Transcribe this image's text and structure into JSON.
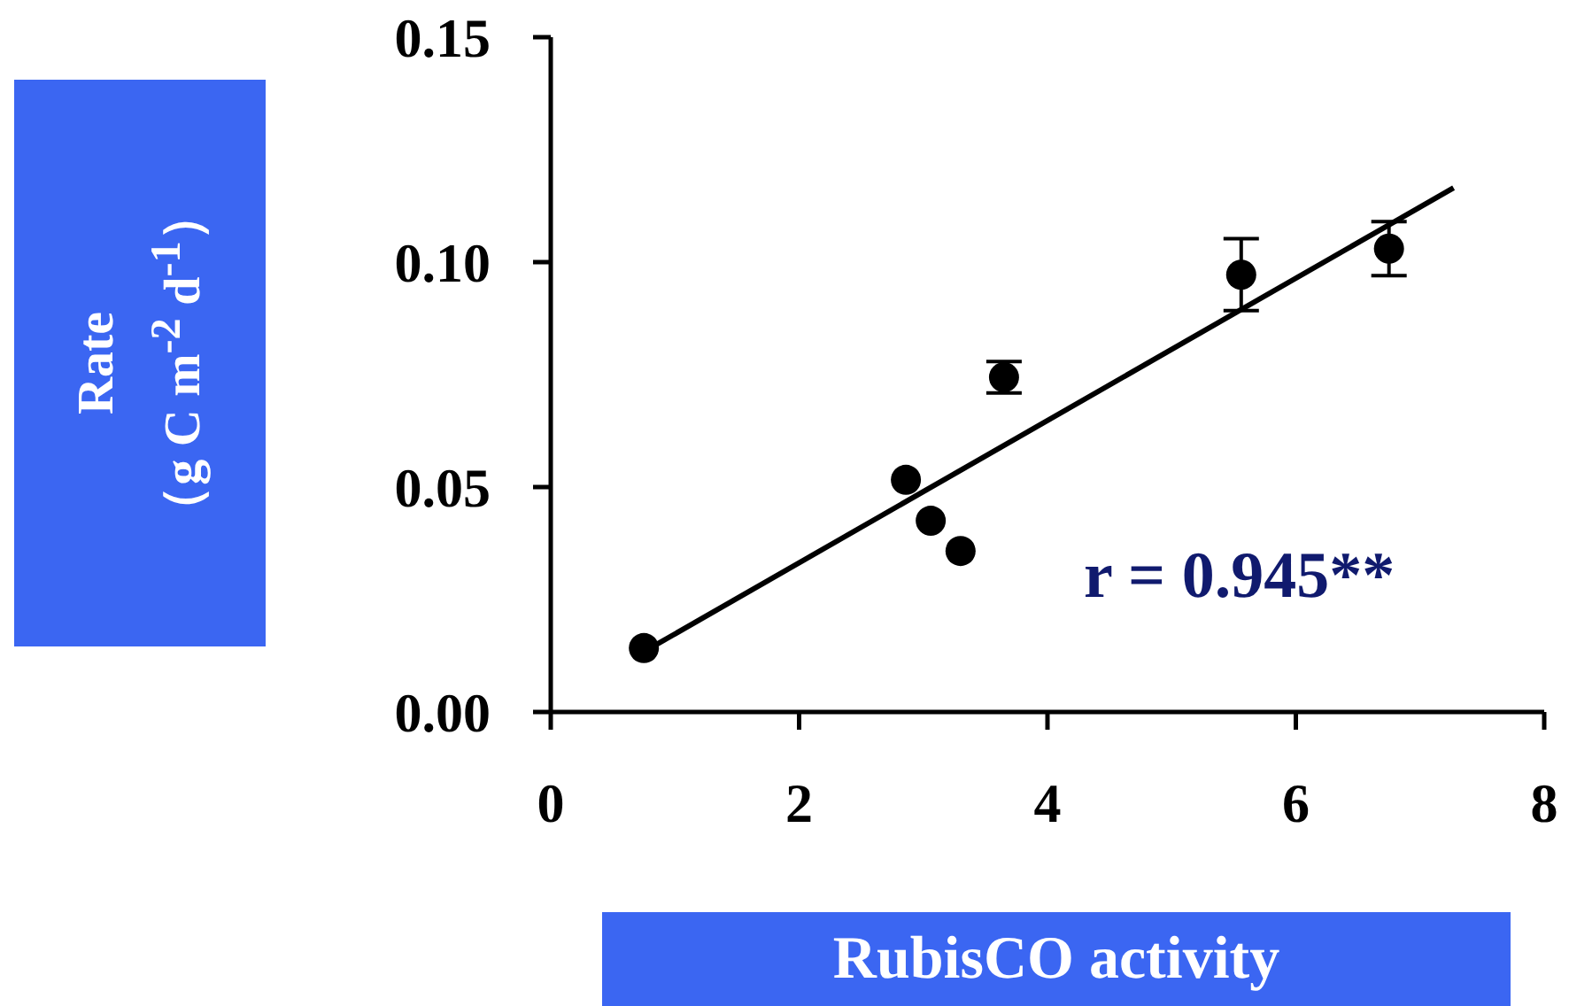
{
  "chart_data": {
    "type": "scatter",
    "xlabel": "RubisCO activity",
    "ylabel": "Rate\n（g C m$^{-2}$ d$^{-1}$）",
    "annotations": [
      "r = 0.945**"
    ],
    "xlim": [
      0,
      8
    ],
    "xticks": [
      0,
      2,
      4,
      6,
      8
    ],
    "ylim": [
      0,
      0.15
    ],
    "yticks": [
      {
        "value": 0,
        "label": "0.00"
      },
      {
        "value": 0.05,
        "label": "0.05"
      },
      {
        "value": 0.1,
        "label": "0.10"
      },
      {
        "value": 0.15,
        "label": "0.15"
      }
    ],
    "grid": false,
    "legend": false,
    "series": [
      {
        "marker": "circle",
        "color": "#000000",
        "x": [
          0.75,
          2.86,
          3.06,
          3.3,
          3.65,
          5.56,
          6.75
        ],
        "values": [
          0.0142,
          0.0516,
          0.0425,
          0.0358,
          0.0744,
          0.0972,
          0.103
        ],
        "errors": [
          null,
          null,
          null,
          null,
          0.0035,
          0.008,
          0.006
        ]
      },
      {
        "type": "line",
        "color": "#000000",
        "x": [
          0.75,
          7.27
        ],
        "values": [
          0.0134,
          0.1165
        ],
        "line_style": "solid",
        "marker": "none"
      }
    ]
  }
}
